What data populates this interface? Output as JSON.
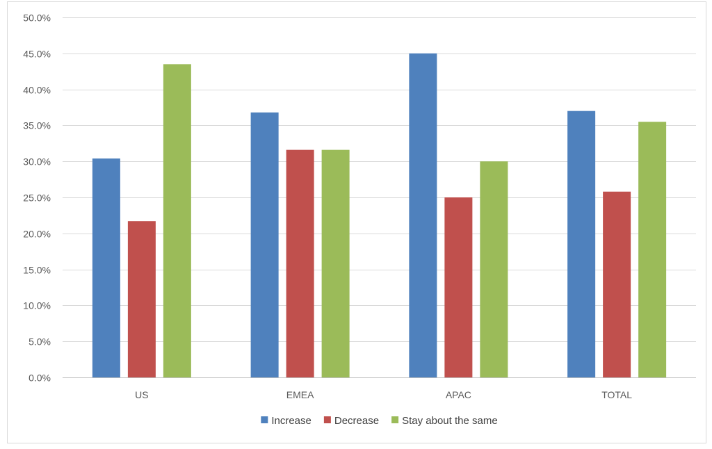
{
  "chart_data": {
    "type": "bar",
    "title": "",
    "xlabel": "",
    "ylabel": "",
    "categories": [
      "US",
      "EMEA",
      "APAC",
      "TOTAL"
    ],
    "series": [
      {
        "name": "Increase",
        "color": "#4f81bd",
        "values": [
          30.4,
          36.8,
          45.0,
          37.0
        ]
      },
      {
        "name": "Decrease",
        "color": "#c0504d",
        "values": [
          21.7,
          31.6,
          25.0,
          25.8
        ]
      },
      {
        "name": "Stay about the same",
        "color": "#9bbb59",
        "values": [
          43.5,
          31.6,
          30.0,
          35.5
        ]
      }
    ],
    "ylim": [
      0,
      50
    ],
    "yticks": [
      "0.0%",
      "5.0%",
      "10.0%",
      "15.0%",
      "20.0%",
      "25.0%",
      "30.0%",
      "35.0%",
      "40.0%",
      "45.0%",
      "50.0%"
    ],
    "grid": true,
    "legend_position": "bottom",
    "value_format": "percent"
  }
}
